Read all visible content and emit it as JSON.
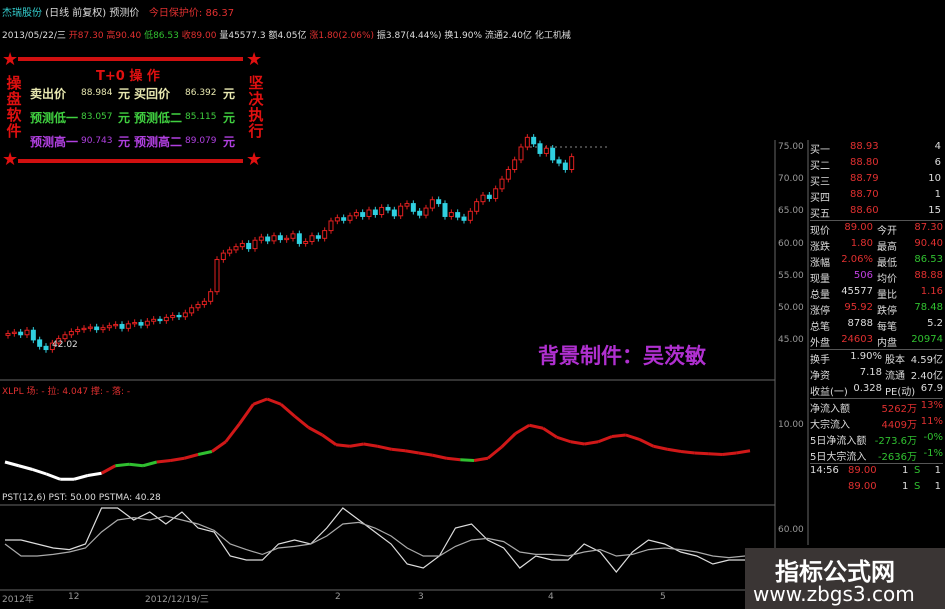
{
  "header": {
    "stock": "杰瑞股份",
    "mode": "(日线 前复权)",
    "predict": "预测价",
    "protect_label": "今日保护价:",
    "protect_value": "86.37"
  },
  "quote": {
    "date": "2013/05/22/三",
    "open": "开87.30",
    "high": "高90.40",
    "low": "低86.53",
    "close": "收89.00",
    "volume": "量45577.3",
    "amount": "额4.05亿",
    "change": "涨1.80(2.06%)",
    "amplitude": "振3.87(4.44%)",
    "turnover": "换1.90%",
    "float": "流通2.40亿",
    "industry": "化工机械"
  },
  "t0": {
    "title": "T+0 操 作",
    "left_side": "操盘软件",
    "right_side": "坚决执行",
    "unit": "元",
    "rows": [
      {
        "l1": "卖出价",
        "v1": "88.984",
        "l2": "买回价",
        "v2": "86.392",
        "color": "#e8e8b0"
      },
      {
        "l1": "预测低一",
        "v1": "83.057",
        "l2": "预测低二",
        "v2": "85.115",
        "color": "#40d040"
      },
      {
        "l1": "预测高一",
        "v1": "90.743",
        "l2": "预测高二",
        "v2": "89.079",
        "color": "#b040e0"
      }
    ]
  },
  "background_text": "背景制件：吴茨敏",
  "price_axis": [
    "75.00",
    "70.00",
    "65.00",
    "60.00",
    "55.00",
    "50.00",
    "45.00"
  ],
  "low_label": "42.02",
  "indicator1": {
    "label": "XLPL 场: - 拉: 4.047 撑: - 落: -",
    "axis": "10.00"
  },
  "indicator2": {
    "label": "PST(12,6) PST: 50.00 PSTMA: 40.28",
    "axis": "60.00"
  },
  "date_axis": [
    "2012年",
    "12",
    "2012/12/19/三",
    "2",
    "3",
    "4",
    "5"
  ],
  "orderbook": [
    {
      "label": "买一",
      "price": "88.93",
      "vol": "4"
    },
    {
      "label": "买二",
      "price": "88.80",
      "vol": "6"
    },
    {
      "label": "买三",
      "price": "88.79",
      "vol": "10"
    },
    {
      "label": "买四",
      "price": "88.70",
      "vol": "1"
    },
    {
      "label": "买五",
      "price": "88.60",
      "vol": "15"
    }
  ],
  "stats": [
    {
      "l1": "现价",
      "v1": "89.00",
      "l2": "今开",
      "v2": "87.30",
      "c1": "#e03030",
      "c2": "#e03030"
    },
    {
      "l1": "涨跌",
      "v1": "1.80",
      "l2": "最高",
      "v2": "90.40",
      "c1": "#e03030",
      "c2": "#e03030"
    },
    {
      "l1": "涨幅",
      "v1": "2.06%",
      "l2": "最低",
      "v2": "86.53",
      "c1": "#e03030",
      "c2": "#30c030"
    },
    {
      "l1": "现量",
      "v1": "506",
      "l2": "均价",
      "v2": "88.88",
      "c1": "#c040e0",
      "c2": "#e03030"
    },
    {
      "l1": "总量",
      "v1": "45577",
      "l2": "量比",
      "v2": "1.16",
      "c1": "#ddd",
      "c2": "#e03030"
    },
    {
      "l1": "涨停",
      "v1": "95.92",
      "l2": "跌停",
      "v2": "78.48",
      "c1": "#e03030",
      "c2": "#30c030"
    },
    {
      "l1": "总笔",
      "v1": "8788",
      "l2": "每笔",
      "v2": "5.2",
      "c1": "#ddd",
      "c2": "#ddd"
    },
    {
      "l1": "外盘",
      "v1": "24603",
      "l2": "内盘",
      "v2": "20974",
      "c1": "#e03030",
      "c2": "#30c030"
    }
  ],
  "stats2": [
    {
      "l1": "换手",
      "v1": "1.90%",
      "l2": "股本",
      "v2": "4.59亿"
    },
    {
      "l1": "净资",
      "v1": "7.18",
      "l2": "流通",
      "v2": "2.40亿"
    },
    {
      "l1": "收益(一)",
      "v1": "0.328",
      "l2": "PE(动)",
      "v2": "67.9"
    }
  ],
  "flows": [
    {
      "label": "净流入额",
      "v1": "5262万",
      "v2": "13%",
      "color": "#e03030"
    },
    {
      "label": "大宗流入",
      "v1": "4409万",
      "v2": "11%",
      "color": "#e03030"
    },
    {
      "label": "5日净流入额",
      "v1": "-273.6万",
      "v2": "-0%",
      "color": "#30c030"
    },
    {
      "label": "5日大宗流入",
      "v1": "-2636万",
      "v2": "-1%",
      "color": "#30c030"
    }
  ],
  "ticks": [
    {
      "time": "14:56",
      "price": "89.00",
      "vol": "1",
      "bs": "S",
      "n": "1"
    },
    {
      "time": "",
      "price": "89.00",
      "vol": "1",
      "bs": "S",
      "n": "1"
    }
  ],
  "watermark": {
    "title": "指标公式网",
    "url": "www.zbgs3.com"
  },
  "colors": {
    "up": "#e02020",
    "down": "#30d0e0",
    "ind_main": "#d01818",
    "ind_green": "#30c030",
    "ind_white": "#ffffff"
  },
  "chart_data": {
    "type": "candlestick",
    "closes": [
      46,
      46.2,
      45.8,
      46.5,
      45,
      44,
      43.5,
      44.5,
      45.2,
      45.8,
      46.3,
      46.6,
      46.8,
      47,
      46.6,
      46.9,
      47.2,
      47.4,
      46.8,
      47.5,
      47.7,
      47.3,
      47.9,
      48.2,
      48,
      48.5,
      48.8,
      48.6,
      49.2,
      50,
      50.5,
      51,
      52.5,
      57.5,
      58.5,
      59,
      59.5,
      60,
      59.2,
      60.5,
      61,
      60.4,
      61.2,
      60.6,
      60.8,
      61.5,
      60,
      60.3,
      61.2,
      60.8,
      62,
      63.5,
      64,
      63.6,
      64.3,
      64.8,
      64.2,
      65.2,
      64.5,
      65.6,
      65.2,
      64.3,
      65.8,
      66.2,
      65,
      64.4,
      65.5,
      66.8,
      66.2,
      64.2,
      64.8,
      64.1,
      63.6,
      65,
      66.5,
      67.5,
      67,
      68.5,
      70,
      71.5,
      73,
      75,
      76.5,
      75.5,
      74,
      74.8,
      73,
      72.5,
      71.5,
      73.5
    ],
    "price_range": [
      42,
      78
    ],
    "xlpl": [
      6.9,
      6.4,
      5.9,
      5.3,
      4.6,
      4.6,
      5.1,
      5.4,
      6.4,
      6.6,
      6.4,
      6.9,
      7.1,
      7.4,
      7.9,
      8.3,
      9.6,
      12,
      14.6,
      15.3,
      14.6,
      13,
      11.5,
      10.5,
      9.2,
      9,
      9.3,
      9,
      8.6,
      8.4,
      8.1,
      7.8,
      7.4,
      7.2,
      7.1,
      7.4,
      8.9,
      10.7,
      11.8,
      11.4,
      10.2,
      9.6,
      9.3,
      9.6,
      10.3,
      10.5,
      9.9,
      9,
      8.6,
      8.3,
      8.1,
      8,
      7.9,
      8.1,
      8.4
    ],
    "xlpl_range": [
      0,
      20
    ],
    "pst": [
      60,
      60,
      55,
      50,
      48,
      55,
      100,
      100,
      85,
      95,
      80,
      95,
      75,
      70,
      40,
      35,
      35,
      55,
      60,
      55,
      75,
      100,
      85,
      70,
      55,
      30,
      25,
      40,
      75,
      80,
      60,
      50,
      25,
      40,
      35,
      35,
      55,
      45,
      20,
      45,
      60,
      55,
      45,
      40,
      30,
      35,
      35
    ],
    "pstma": [
      55,
      40,
      40,
      42,
      45,
      50,
      70,
      85,
      88,
      85,
      90,
      85,
      80,
      72,
      55,
      48,
      42,
      50,
      52,
      55,
      65,
      80,
      82,
      75,
      65,
      50,
      40,
      40,
      52,
      60,
      62,
      58,
      45,
      42,
      42,
      40,
      45,
      48,
      40,
      42,
      48,
      50,
      48,
      45,
      40,
      38,
      40
    ],
    "pst_range": [
      0,
      100
    ]
  }
}
